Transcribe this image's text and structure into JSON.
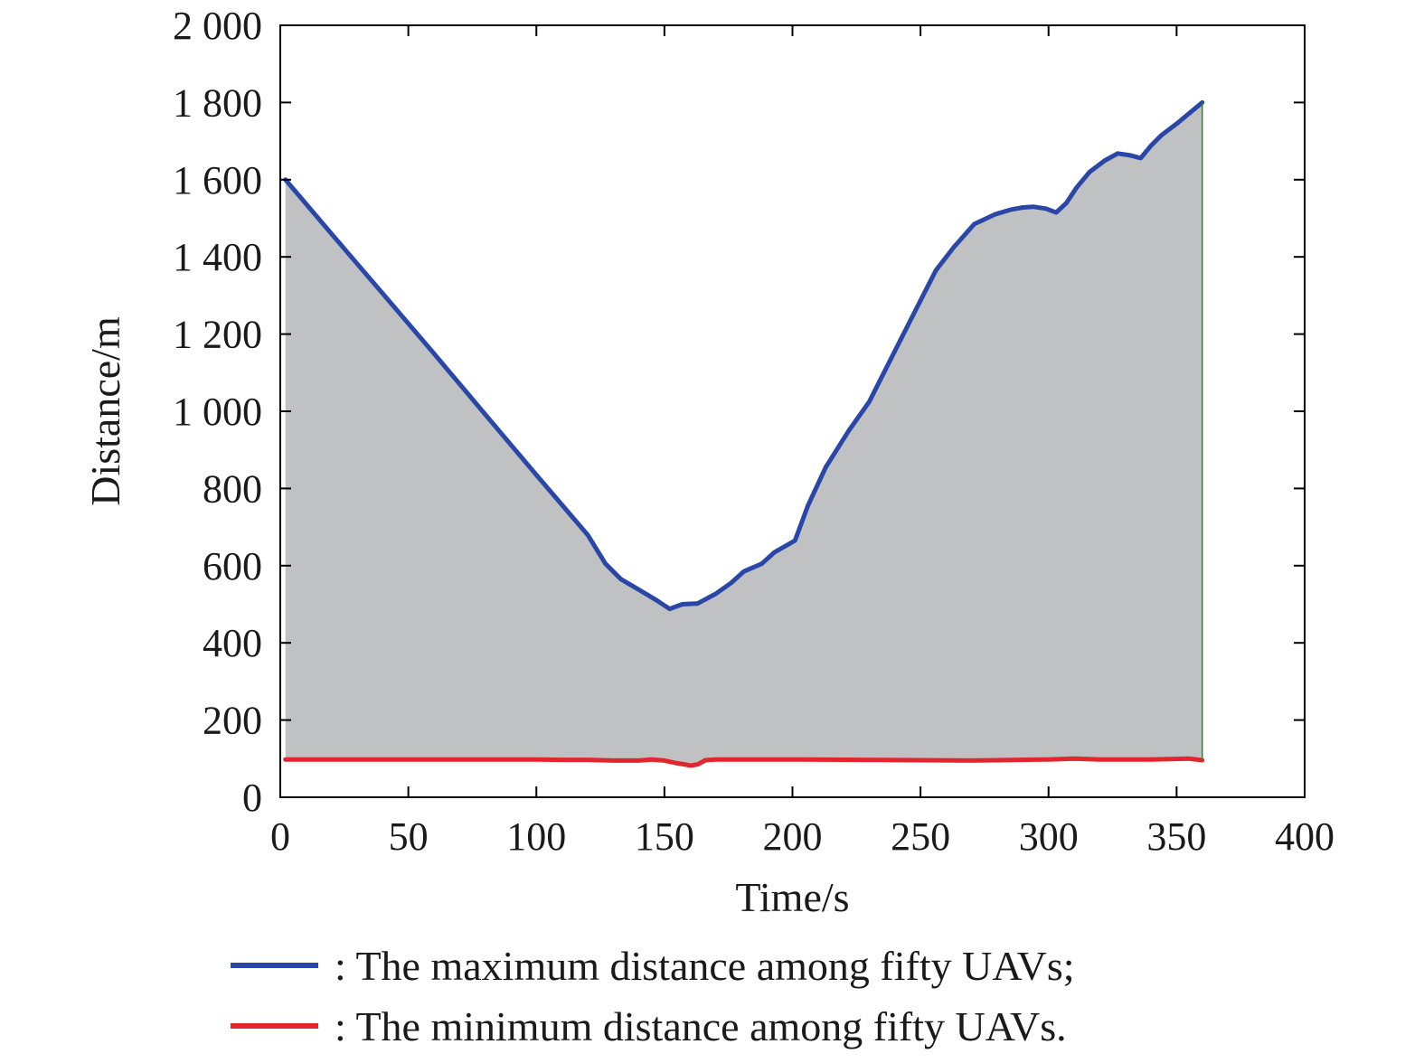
{
  "chart_data": {
    "type": "area",
    "xlabel": "Time/s",
    "ylabel": "Distance/m",
    "xlim": [
      0,
      400
    ],
    "ylim": [
      0,
      2000
    ],
    "xticks": [
      0,
      50,
      100,
      150,
      200,
      250,
      300,
      350,
      400
    ],
    "xtick_labels": [
      "0",
      "50",
      "100",
      "150",
      "200",
      "250",
      "300",
      "350",
      "400"
    ],
    "yticks": [
      0,
      200,
      400,
      600,
      800,
      1000,
      1200,
      1400,
      1600,
      1800,
      2000
    ],
    "ytick_labels": [
      "0",
      "200",
      "400",
      "600",
      "800",
      "1 000",
      "1 200",
      "1 400",
      "1 600",
      "1 800",
      "2 000"
    ],
    "grid": false,
    "legend_position": "bottom",
    "fill_color": "#c0c1c3",
    "series": [
      {
        "name": ": The maximum distance among fifty UAVs;",
        "color": "#2a47a8",
        "x": [
          2,
          20,
          40,
          60,
          80,
          100,
          120,
          127,
          133,
          140,
          147,
          152,
          157,
          163,
          170,
          176,
          181,
          188,
          193,
          201,
          206,
          213,
          222,
          230,
          238,
          246,
          256,
          263,
          271,
          279,
          285,
          290,
          294,
          299,
          303,
          307,
          311,
          316,
          322,
          327,
          332,
          336,
          340,
          344,
          350,
          356,
          360
        ],
        "values": [
          1600,
          1460,
          1305,
          1150,
          992,
          835,
          680,
          605,
          565,
          538,
          510,
          488,
          500,
          502,
          527,
          555,
          585,
          605,
          635,
          665,
          755,
          855,
          950,
          1025,
          1130,
          1235,
          1365,
          1425,
          1485,
          1510,
          1522,
          1528,
          1530,
          1525,
          1515,
          1540,
          1580,
          1620,
          1650,
          1668,
          1663,
          1656,
          1688,
          1715,
          1745,
          1778,
          1800
        ]
      },
      {
        "name": ": The minimum distance among fifty UAVs.",
        "color": "#e3252d",
        "x": [
          2,
          50,
          100,
          110,
          120,
          130,
          140,
          145,
          150,
          155,
          158,
          160,
          163,
          166,
          170,
          200,
          250,
          270,
          280,
          300,
          310,
          320,
          340,
          355,
          360
        ],
        "values": [
          98,
          98,
          98,
          97,
          97,
          95,
          95,
          98,
          95,
          88,
          85,
          82,
          85,
          96,
          98,
          98,
          96,
          95,
          96,
          98,
          100,
          98,
          98,
          100,
          96
        ]
      }
    ]
  }
}
